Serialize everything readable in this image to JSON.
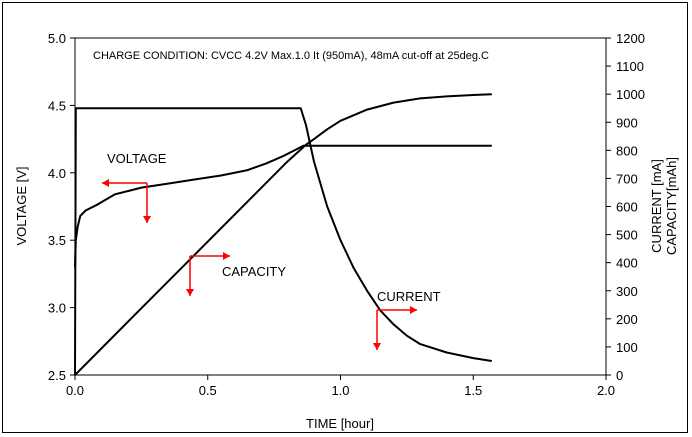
{
  "chart_data": {
    "type": "line",
    "note": "CHARGE CONDITION:  CVCC 4.2V Max.1.0 It (950mA), 48mA cut-off at 25deg.C",
    "xlabel": "TIME  [hour]",
    "ylabel_left": "VOLTAGE  [V]",
    "ylabel_right": [
      "CURRENT [mA]",
      "CAPACITY[mAh]"
    ],
    "xlim": [
      0,
      2.0
    ],
    "ylim_left": [
      2.5,
      5.0
    ],
    "ylim_right": [
      0,
      1200
    ],
    "x_ticks": [
      "0.0",
      "0.5",
      "1.0",
      "1.5",
      "2.0"
    ],
    "y_left_ticks": [
      "2.5",
      "3.0",
      "3.5",
      "4.0",
      "4.5",
      "5.0"
    ],
    "y_right_ticks": [
      "0",
      "100",
      "200",
      "300",
      "400",
      "500",
      "600",
      "700",
      "800",
      "900",
      "1000",
      "1100",
      "1200"
    ],
    "grid": false,
    "series": [
      {
        "name": "VOLTAGE",
        "axis": "left",
        "points": [
          [
            0,
            3.3
          ],
          [
            0.003,
            3.5
          ],
          [
            0.01,
            3.6
          ],
          [
            0.02,
            3.68
          ],
          [
            0.04,
            3.72
          ],
          [
            0.08,
            3.76
          ],
          [
            0.15,
            3.84
          ],
          [
            0.25,
            3.89
          ],
          [
            0.35,
            3.92
          ],
          [
            0.45,
            3.95
          ],
          [
            0.55,
            3.98
          ],
          [
            0.65,
            4.02
          ],
          [
            0.72,
            4.07
          ],
          [
            0.78,
            4.12
          ],
          [
            0.83,
            4.17
          ],
          [
            0.86,
            4.2
          ],
          [
            0.9,
            4.2
          ],
          [
            1.2,
            4.2
          ],
          [
            1.57,
            4.2
          ]
        ]
      },
      {
        "name": "CURRENT",
        "axis": "right",
        "points": [
          [
            0,
            0
          ],
          [
            0.003,
            950
          ],
          [
            0.85,
            950
          ],
          [
            0.87,
            890
          ],
          [
            0.9,
            760
          ],
          [
            0.95,
            600
          ],
          [
            1.0,
            480
          ],
          [
            1.05,
            380
          ],
          [
            1.1,
            300
          ],
          [
            1.15,
            230
          ],
          [
            1.2,
            180
          ],
          [
            1.25,
            140
          ],
          [
            1.3,
            110
          ],
          [
            1.4,
            80
          ],
          [
            1.5,
            60
          ],
          [
            1.57,
            50
          ]
        ]
      },
      {
        "name": "CAPACITY",
        "axis": "right",
        "points": [
          [
            0,
            0
          ],
          [
            0.2,
            190
          ],
          [
            0.4,
            380
          ],
          [
            0.6,
            570
          ],
          [
            0.8,
            760
          ],
          [
            0.87,
            820
          ],
          [
            0.9,
            840
          ],
          [
            0.95,
            875
          ],
          [
            1.0,
            905
          ],
          [
            1.1,
            945
          ],
          [
            1.2,
            970
          ],
          [
            1.3,
            985
          ],
          [
            1.4,
            992
          ],
          [
            1.5,
            997
          ],
          [
            1.57,
            1000
          ]
        ]
      }
    ],
    "annotations": [
      {
        "label": "VOLTAGE",
        "points_to": "left"
      },
      {
        "label": "CAPACITY",
        "points_to": "right"
      },
      {
        "label": "CURRENT",
        "points_to": "right"
      }
    ],
    "colors": {
      "lines": "#000000",
      "arrows": "#ff0000"
    }
  }
}
